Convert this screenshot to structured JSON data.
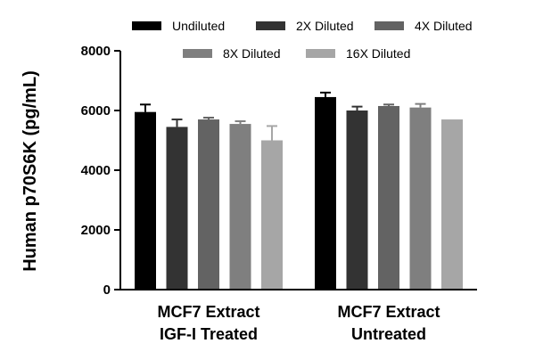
{
  "chart_data": {
    "type": "bar",
    "title": "",
    "xlabel": "",
    "ylabel": "Human p70S6K (pg/mL)",
    "ylim": [
      0,
      8000
    ],
    "yticks": [
      0,
      2000,
      4000,
      6000,
      8000
    ],
    "yticks_labels": [
      "0",
      "2000",
      "4000",
      "6000",
      "8000"
    ],
    "legend_position": "top",
    "categories": [
      {
        "line1": "MCF7 Extract",
        "line2": "IGF-I Treated"
      },
      {
        "line1": "MCF7 Extract",
        "line2": "Untreated"
      }
    ],
    "series": [
      {
        "name": "Undiluted",
        "color": "#000000",
        "values": [
          5950,
          6450
        ],
        "errors": [
          250,
          150
        ]
      },
      {
        "name": "2X Diluted",
        "color": "#333333",
        "values": [
          5450,
          6000
        ],
        "errors": [
          250,
          130
        ]
      },
      {
        "name": "4X Diluted",
        "color": "#636363",
        "values": [
          5700,
          6150
        ],
        "errors": [
          60,
          50
        ]
      },
      {
        "name": "8X Diluted",
        "color": "#7f7f7f",
        "values": [
          5550,
          6100
        ],
        "errors": [
          90,
          120
        ]
      },
      {
        "name": "16X Diluted",
        "color": "#a6a6a6",
        "values": [
          5000,
          5700
        ],
        "errors": [
          480,
          0
        ]
      }
    ]
  }
}
